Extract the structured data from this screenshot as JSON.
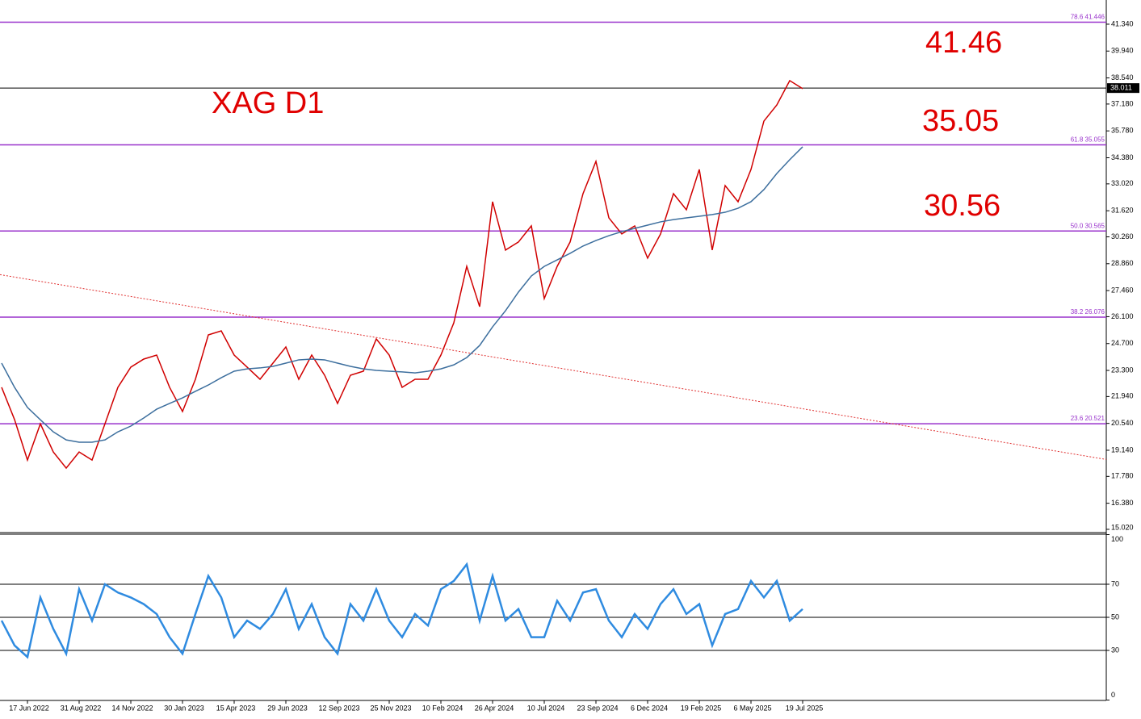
{
  "chart_data": [
    {
      "type": "line",
      "title": "XAG D1",
      "annotations": [
        "41.46",
        "35.05",
        "30.56"
      ],
      "categories": [
        null,
        null,
        "17 Jun 2022",
        null,
        null,
        null,
        "31 Aug 2022",
        null,
        null,
        null,
        "14 Nov 2022",
        null,
        null,
        null,
        "30 Jan 2023",
        null,
        null,
        null,
        "15 Apr 2023",
        null,
        null,
        null,
        "29 Jun 2023",
        null,
        null,
        null,
        "12 Sep 2023",
        null,
        null,
        null,
        "25 Nov 2023",
        null,
        null,
        null,
        "10 Feb 2024",
        null,
        null,
        null,
        "26 Apr 2024",
        null,
        null,
        null,
        "10 Jul 2024",
        null,
        null,
        null,
        "23 Sep 2024",
        null,
        null,
        null,
        "6 Dec 2024",
        null,
        null,
        null,
        "19 Feb 2025",
        null,
        null,
        null,
        "6 May 2025",
        null,
        null,
        null,
        "19 Jul 2025"
      ],
      "series": [
        {
          "color": "#d00000",
          "values": [
            22.42,
            20.74,
            18.63,
            20.52,
            19.05,
            18.21,
            19.05,
            18.63,
            20.52,
            22.42,
            23.47,
            23.89,
            24.1,
            22.42,
            21.16,
            22.84,
            25.15,
            25.36,
            24.1,
            23.47,
            22.84,
            23.68,
            24.52,
            22.84,
            24.1,
            23.05,
            21.58,
            23.05,
            23.26,
            24.94,
            24.1,
            22.42,
            22.84,
            22.84,
            24.1,
            25.78,
            28.72,
            26.62,
            32.09,
            29.57,
            29.99,
            30.83,
            27.04,
            28.72,
            29.99,
            32.51,
            34.19,
            31.25,
            30.41,
            30.83,
            29.15,
            30.41,
            32.51,
            31.67,
            33.77,
            29.57,
            32.93,
            32.09,
            33.77,
            36.29,
            37.13,
            38.4,
            37.98
          ]
        },
        {
          "color": "#3d6f9e",
          "values": [
            23.68,
            22.42,
            21.37,
            20.73,
            20.1,
            19.68,
            19.56,
            19.56,
            19.68,
            20.1,
            20.4,
            20.82,
            21.28,
            21.58,
            21.87,
            22.21,
            22.54,
            22.92,
            23.26,
            23.38,
            23.43,
            23.51,
            23.68,
            23.85,
            23.89,
            23.85,
            23.68,
            23.51,
            23.38,
            23.3,
            23.26,
            23.22,
            23.17,
            23.26,
            23.38,
            23.59,
            23.97,
            24.6,
            25.57,
            26.41,
            27.38,
            28.22,
            28.72,
            29.06,
            29.4,
            29.78,
            30.07,
            30.32,
            30.53,
            30.7,
            30.87,
            31.04,
            31.16,
            31.25,
            31.33,
            31.42,
            31.54,
            31.75,
            32.09,
            32.72,
            33.56,
            34.28,
            34.95
          ]
        }
      ],
      "levels": [
        {
          "value": 41.446,
          "label": "78.6 41.446"
        },
        {
          "value": 35.055,
          "label": "61.8 35.055"
        },
        {
          "value": 30.565,
          "label": "50.0 30.565"
        },
        {
          "value": 26.076,
          "label": "38.2 26.076"
        },
        {
          "value": 20.521,
          "label": "23.6 20.521"
        }
      ],
      "level_color": "#9932cc",
      "current": {
        "value": 38.011,
        "label": "38.011"
      },
      "trendline": {
        "start": 28.29,
        "end": 18.66,
        "color": "#e03030"
      },
      "ylim": [
        14.85,
        42.6
      ],
      "yticks": [
        {
          "value": 41.34,
          "label": "41.340"
        },
        {
          "value": 39.94,
          "label": "39.940"
        },
        {
          "value": 38.54,
          "label": "38.540"
        },
        {
          "value": 37.18,
          "label": "37.180"
        },
        {
          "value": 35.78,
          "label": "35.780"
        },
        {
          "value": 34.38,
          "label": "34.380"
        },
        {
          "value": 33.02,
          "label": "33.020"
        },
        {
          "value": 31.62,
          "label": "31.620"
        },
        {
          "value": 30.26,
          "label": "30.260"
        },
        {
          "value": 28.86,
          "label": "28.860"
        },
        {
          "value": 27.46,
          "label": "27.460"
        },
        {
          "value": 26.1,
          "label": "26.100"
        },
        {
          "value": 24.7,
          "label": "24.700"
        },
        {
          "value": 23.3,
          "label": "23.300"
        },
        {
          "value": 21.94,
          "label": "21.940"
        },
        {
          "value": 20.54,
          "label": "20.540"
        },
        {
          "value": 19.14,
          "label": "19.140"
        },
        {
          "value": 17.78,
          "label": "17.780"
        },
        {
          "value": 16.38,
          "label": "16.380"
        },
        {
          "value": 15.02,
          "label": "15.020"
        }
      ]
    },
    {
      "type": "line",
      "series": [
        {
          "color": "#2f8be0",
          "values": [
            48,
            33,
            26,
            62,
            43,
            28,
            67,
            48,
            70,
            65,
            62,
            58,
            52,
            38,
            28,
            52,
            75,
            62,
            38,
            48,
            43,
            52,
            67,
            43,
            58,
            38,
            28,
            58,
            48,
            67,
            48,
            38,
            52,
            45,
            67,
            72,
            82,
            48,
            75,
            48,
            55,
            38,
            38,
            60,
            48,
            65,
            67,
            48,
            38,
            52,
            43,
            58,
            67,
            52,
            58,
            33,
            52,
            55,
            72,
            62,
            72,
            48,
            55
          ]
        }
      ],
      "ylim": [
        0,
        100
      ],
      "yticks": [
        0,
        30,
        50,
        70,
        100
      ],
      "levels": [
        30,
        50,
        70
      ]
    }
  ]
}
